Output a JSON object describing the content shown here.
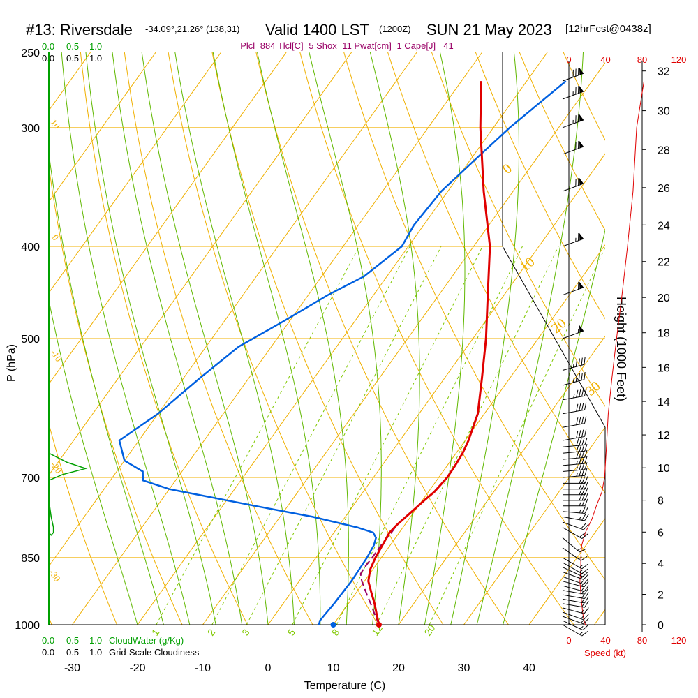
{
  "title": {
    "station": "#13: Riversdale",
    "coords": "-34.09°,21.26° (138,31)",
    "valid": "Valid 1400 LST",
    "zulu": "(1200Z)",
    "date": "SUN 21 May 2023",
    "forecast": "[12hrFcst@0438z]"
  },
  "indices": "Plcl=884 Tlcl[C]=5 Shox=11 Pwat[cm]=1 Cape[J]= 41",
  "colors": {
    "isotherm": "#f0b000",
    "dry_adiabat": "#90c800",
    "moist_adiabat": "#60b800",
    "mixing_ratio": "#80c800",
    "temperature": "#e00000",
    "dewpoint": "#0060e0",
    "parcel": "#990066",
    "cloud_water": "#00a000",
    "wind_speed": "#e00000"
  },
  "chart_data": {
    "type": "line",
    "skew_t": true,
    "xlabel": "Temperature (C)",
    "ylabel": "P (hPa)",
    "y2label": "Height (1000 Feet)",
    "x_ticks": [
      -30,
      -20,
      -10,
      0,
      10,
      20,
      30,
      40
    ],
    "p_ticks": [
      1000,
      850,
      700,
      500,
      400,
      300,
      250
    ],
    "p_lines": [
      1000,
      850,
      700,
      500,
      400,
      300
    ],
    "height_ticks": [
      0,
      2,
      4,
      6,
      8,
      10,
      12,
      14,
      16,
      18,
      20,
      22,
      24,
      26,
      28,
      30,
      32
    ],
    "wind_speed_ticks": [
      0,
      40,
      80,
      120
    ],
    "wind_speed_label": "Speed (kt)",
    "cloud_scale_top": {
      "green": [
        "0.0",
        "0.5",
        "1.0"
      ],
      "black": [
        "0.0",
        "0.5",
        "1.0"
      ]
    },
    "cloud_scale_bottom": {
      "green": [
        "0.0",
        "0.5",
        "1.0"
      ],
      "black": [
        "0.0",
        "0.5",
        "1.0"
      ]
    },
    "cloud_water_label": "CloudWater (g/Kg)",
    "cloudiness_label": "Grid-Scale Cloudiness",
    "isotherm_labels": [
      "10",
      "0",
      "-10",
      "-20",
      "-30",
      "0",
      "10",
      "20",
      "30"
    ],
    "mixing_ratio_labels": [
      "1",
      "2",
      "3",
      "5",
      "8",
      "12",
      "20"
    ],
    "series": [
      {
        "name": "Temperature",
        "p": [
          1000,
          975,
          950,
          925,
          900,
          875,
          850,
          825,
          800,
          785,
          770,
          755,
          740,
          725,
          700,
          680,
          660,
          640,
          600,
          550,
          500,
          450,
          400,
          350,
          300,
          268
        ],
        "t": [
          17,
          15.5,
          14,
          12.3,
          10.6,
          9.6,
          9.1,
          8.8,
          8.5,
          8.8,
          9.3,
          9.8,
          10.3,
          10.9,
          11.3,
          11.2,
          11.0,
          10.5,
          9,
          5.7,
          2,
          -2.5,
          -7.5,
          -14.5,
          -22,
          -27
        ]
      },
      {
        "name": "Dewpoint",
        "p": [
          1000,
          990,
          975,
          950,
          900,
          850,
          825,
          810,
          800,
          790,
          770,
          750,
          720,
          705,
          690,
          672,
          640,
          600,
          550,
          510,
          480,
          450,
          430,
          400,
          380,
          350,
          320,
          300,
          268
        ],
        "t": [
          7.8,
          7.5,
          7.6,
          7.8,
          8.0,
          7.8,
          7.5,
          7.0,
          6.0,
          3.0,
          -5.0,
          -15.0,
          -30.0,
          -35.0,
          -36.0,
          -40.0,
          -43.0,
          -40.0,
          -37.5,
          -35.0,
          -31.0,
          -27.0,
          -23.5,
          -21.0,
          -21.5,
          -21.0,
          -19.0,
          -17.5,
          -14
        ]
      },
      {
        "name": "Parcel",
        "p": [
          1000,
          975,
          950,
          925,
          900,
          884,
          870,
          850,
          825,
          800,
          790
        ],
        "t": [
          17,
          15.2,
          13.4,
          11.5,
          9.6,
          8.6,
          8.5,
          8.6,
          8.6,
          8.8,
          8.8
        ]
      },
      {
        "name": "Wind speed",
        "p": [
          1000,
          985,
          970,
          950,
          925,
          900,
          875,
          850,
          825,
          800,
          775,
          750,
          725,
          700,
          675,
          650,
          600,
          550,
          500,
          450,
          400,
          350,
          300,
          268
        ],
        "v": [
          18,
          16,
          15,
          14,
          13,
          12,
          13,
          13,
          14,
          18,
          25,
          30,
          36,
          39,
          40,
          41,
          43,
          47,
          52,
          58,
          64,
          70,
          74,
          82
        ]
      },
      {
        "name": "Cloud water",
        "p": [
          740,
          770,
          790,
          800,
          805,
          800
        ],
        "v": [
          0.0,
          0.05,
          0.1,
          0.1,
          0.05,
          0.0
        ]
      },
      {
        "name": "Cloudiness",
        "p": [
          650,
          660,
          675,
          685,
          695,
          705,
          712,
          650
        ],
        "v": [
          0.0,
          0.0,
          0.4,
          0.8,
          0.3,
          0.0,
          0.0,
          0.0
        ]
      }
    ],
    "winds": {
      "p": [
        1000,
        990,
        980,
        970,
        960,
        950,
        940,
        930,
        920,
        910,
        900,
        890,
        880,
        870,
        860,
        850,
        830,
        810,
        790,
        780,
        770,
        760,
        750,
        740,
        730,
        720,
        710,
        700,
        690,
        680,
        670,
        660,
        650,
        640,
        620,
        600,
        580,
        560,
        540,
        500,
        450,
        400,
        350,
        320,
        300,
        280,
        268
      ],
      "dir": [
        300,
        295,
        290,
        290,
        285,
        280,
        280,
        280,
        280,
        285,
        285,
        290,
        290,
        295,
        300,
        300,
        305,
        310,
        300,
        290,
        280,
        275,
        270,
        270,
        270,
        270,
        270,
        265,
        265,
        265,
        265,
        265,
        265,
        260,
        260,
        260,
        260,
        255,
        255,
        250,
        250,
        250,
        250,
        250,
        250,
        250,
        250
      ],
      "spd": [
        15,
        15,
        15,
        15,
        15,
        15,
        15,
        15,
        15,
        15,
        15,
        15,
        15,
        15,
        15,
        15,
        15,
        15,
        20,
        20,
        25,
        25,
        25,
        30,
        30,
        30,
        30,
        35,
        35,
        35,
        40,
        40,
        40,
        40,
        40,
        40,
        45,
        45,
        45,
        55,
        60,
        65,
        70,
        70,
        75,
        75,
        80
      ]
    }
  }
}
